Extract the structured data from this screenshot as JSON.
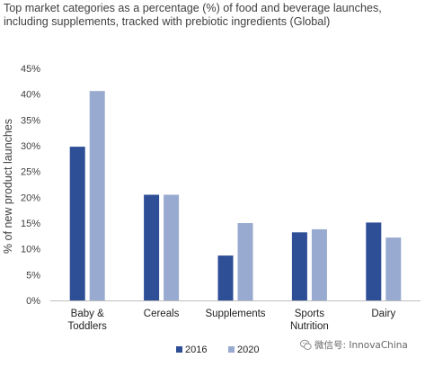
{
  "title_lines": [
    "Top market categories as a percentage (%) of food and beverage launches,",
    "including supplements, tracked with prebiotic ingredients (Global)"
  ],
  "watermark": {
    "text": "微信号: InnovaChina",
    "icon": "wechat-icon"
  },
  "colors": {
    "series_2016": "#2e4e96",
    "series_2020": "#98aacf",
    "axis": "#bfbfbf",
    "text": "#404040"
  },
  "chart_data": {
    "type": "bar",
    "title": "Top market categories as a percentage (%) of food and beverage launches, including supplements, tracked with prebiotic ingredients (Global)",
    "xlabel": "",
    "ylabel": "% of new product launches",
    "categories": [
      [
        "Baby &",
        "Toddlers"
      ],
      [
        "Cereals"
      ],
      [
        "Supplements"
      ],
      [
        "Sports",
        "Nutrition"
      ],
      [
        "Dairy"
      ]
    ],
    "series": [
      {
        "name": "2016",
        "color": "#2e4e96",
        "values": [
          29.8,
          20.5,
          8.7,
          13.2,
          15.1
        ]
      },
      {
        "name": "2020",
        "color": "#98aacf",
        "values": [
          40.6,
          20.5,
          15.0,
          13.8,
          12.2
        ]
      }
    ],
    "ylim": [
      0,
      45
    ],
    "yticks": [
      "0%",
      "5%",
      "10%",
      "15%",
      "20%",
      "25%",
      "30%",
      "35%",
      "40%",
      "45%"
    ],
    "grid": false,
    "legend": "bottom-center"
  }
}
